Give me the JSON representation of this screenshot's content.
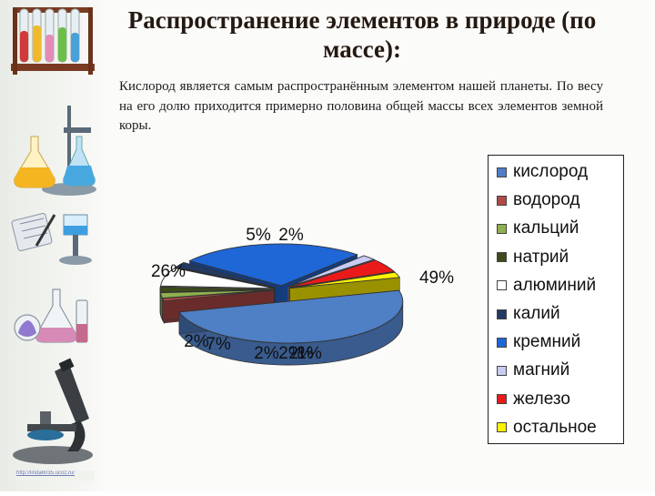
{
  "slide": {
    "title": "Распространение элементов в природе (по массе):",
    "intro": "Кислород является самым распространённым элементом нашей планеты. По весу на его долю приходится примерно половина общей массы всех элементов земной коры.",
    "footer_url": "http://linda6035.ucoz.ru/"
  },
  "chart_data": {
    "type": "pie",
    "style": "3d-exploded",
    "legend_position": "right",
    "series": [
      {
        "labels": [
          "кислород",
          "водород",
          "кальций",
          "натрий",
          "алюминий",
          "калий",
          "кремний",
          "магний",
          "железо",
          "остальное"
        ],
        "values": [
          49,
          1,
          2,
          2,
          7,
          2,
          26,
          2,
          5,
          2
        ],
        "data_labels": [
          "49%",
          "1%",
          "2%",
          "2%",
          "7%",
          "2%",
          "26%",
          "2%",
          "5%",
          "2%"
        ],
        "colors": [
          "#4f7fc4",
          "#b04a46",
          "#8fb04f",
          "#3d4a1b",
          "#ffffff",
          "#223a63",
          "#1f66d6",
          "#c8cbf2",
          "#ea1a1a",
          "#fff200"
        ]
      }
    ]
  },
  "icons": {
    "sidebar": [
      "test-tube-rack-icon",
      "chemistry-flasks-icon",
      "notebook-pen-icon",
      "glassware-icon",
      "microscope-icon"
    ]
  }
}
